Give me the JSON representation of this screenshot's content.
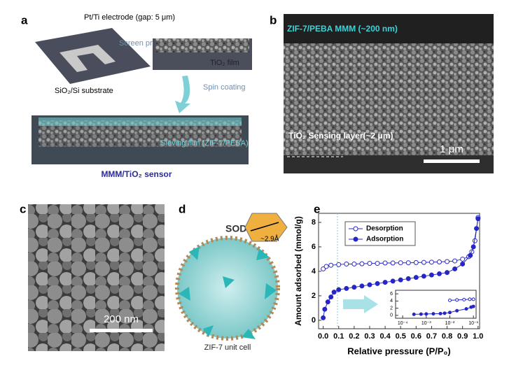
{
  "panels": {
    "a": {
      "label": "a",
      "electrode": "Pt/Ti electrode (gap: 5 μm)",
      "printing": "Screen printing",
      "film": "TiO₂ film",
      "substrate": "SiO₂/Si substrate",
      "spin": "Spin coating",
      "sieving": "Sieving film (ZIF-7/PEBA)",
      "caption": "MMM/TiO₂ sensor"
    },
    "b": {
      "label": "b",
      "membrane": "ZIF-7/PEBA MMM (~200 nm)",
      "sensing": "TiO₂ Sensing layer(~2 μm)",
      "scale": "1 μm"
    },
    "c": {
      "label": "c",
      "scale": "200 nm"
    },
    "d": {
      "label": "d",
      "framework": "SOD",
      "aperture": "~2.9Å",
      "caption": "ZIF-7 unit cell"
    },
    "e": {
      "label": "e"
    }
  },
  "chart_data": [
    {
      "type": "line",
      "xlabel": "Relative pressure (P/P₀)",
      "ylabel": "Amount adsorbed (mmol/g)",
      "xlim": [
        -0.03,
        1.01
      ],
      "ylim": [
        -0.69,
        8.74
      ],
      "xticks": [
        {
          "value": 0,
          "label": "0.0"
        },
        0.1,
        0.2,
        0.3,
        0.4,
        0.5,
        0.6,
        0.7,
        0.8,
        0.9,
        {
          "value": 1,
          "label": "1.0"
        }
      ],
      "yticks": [
        0,
        2,
        4,
        6,
        8
      ],
      "legend": "top-left",
      "series": [
        {
          "name": "Desorption",
          "color": "#2626c8",
          "marker": "open",
          "x": [
            0.0,
            0.02,
            0.05,
            0.1,
            0.15,
            0.2,
            0.25,
            0.3,
            0.35,
            0.4,
            0.45,
            0.5,
            0.55,
            0.6,
            0.65,
            0.7,
            0.75,
            0.8,
            0.85,
            0.9,
            0.94,
            0.96,
            0.98,
            1.0
          ],
          "values": [
            4.2,
            4.4,
            4.5,
            4.55,
            4.6,
            4.6,
            4.62,
            4.65,
            4.65,
            4.68,
            4.68,
            4.7,
            4.7,
            4.72,
            4.73,
            4.75,
            4.77,
            4.8,
            4.85,
            5.0,
            5.2,
            5.6,
            6.5,
            8.4
          ]
        },
        {
          "name": "Adsorption",
          "color": "#2626c8",
          "marker": "filled",
          "x": [
            0.0,
            0.01,
            0.03,
            0.05,
            0.07,
            0.1,
            0.15,
            0.2,
            0.25,
            0.3,
            0.35,
            0.4,
            0.45,
            0.5,
            0.55,
            0.6,
            0.65,
            0.7,
            0.75,
            0.8,
            0.85,
            0.9,
            0.95,
            0.97,
            0.99,
            1.0
          ],
          "values": [
            0.2,
            0.9,
            1.5,
            1.9,
            2.3,
            2.5,
            2.6,
            2.7,
            2.8,
            2.9,
            3.0,
            3.1,
            3.2,
            3.3,
            3.4,
            3.5,
            3.6,
            3.7,
            3.8,
            3.9,
            4.2,
            4.6,
            5.3,
            6.0,
            7.5,
            8.3
          ]
        }
      ]
    },
    {
      "type": "line",
      "log_x": true,
      "xlim": [
        5e-05,
        0.13
      ],
      "ylim": [
        -0.8,
        7
      ],
      "xticks": [
        {
          "value": 0.0001,
          "label": "10⁻⁴"
        },
        {
          "value": 0.001,
          "label": "10⁻³"
        },
        {
          "value": 0.01,
          "label": "10⁻²"
        },
        {
          "value": 0.1,
          "label": "10⁻¹"
        }
      ],
      "yticks": [
        0,
        2,
        4,
        6
      ],
      "series": [
        {
          "name": "Desorption",
          "color": "#2626c8",
          "marker": "open",
          "x": [
            0.01,
            0.02,
            0.04,
            0.07,
            0.1
          ],
          "values": [
            4.2,
            4.3,
            4.4,
            4.5,
            4.5
          ]
        },
        {
          "name": "Adsorption",
          "color": "#2626c8",
          "marker": "filled",
          "x": [
            0.0003,
            0.0006,
            0.001,
            0.002,
            0.004,
            0.006,
            0.01,
            0.02,
            0.05,
            0.08,
            0.1
          ],
          "values": [
            0.3,
            0.35,
            0.4,
            0.45,
            0.5,
            0.6,
            0.8,
            1.3,
            1.8,
            2.3,
            2.5
          ]
        }
      ]
    }
  ]
}
